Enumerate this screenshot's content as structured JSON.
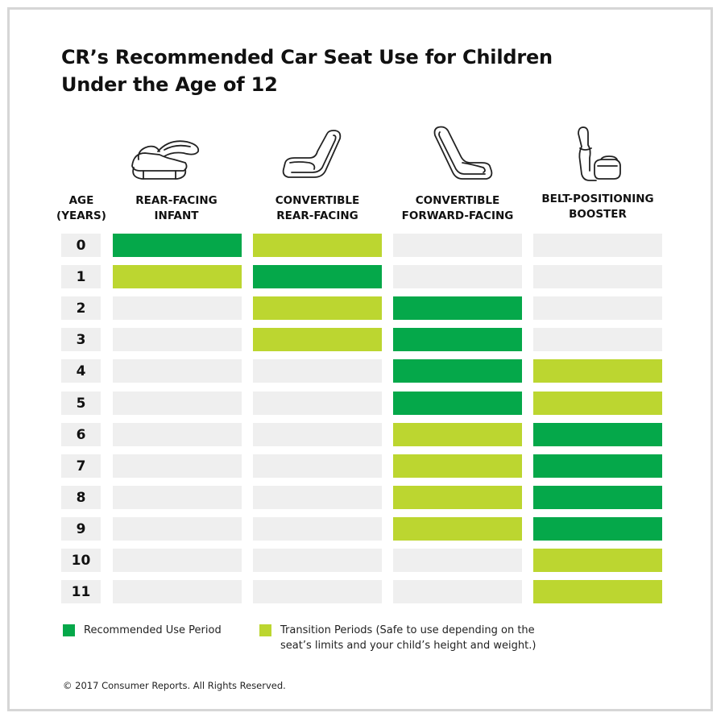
{
  "title_line1": "CR’s Recommended Car Seat Use for Children",
  "title_line2": "Under the Age of 12",
  "age_header_line1": "AGE",
  "age_header_line2": "(YEARS)",
  "columns": [
    {
      "line1": "REAR-FACING",
      "line2": "INFANT",
      "icon": "infant-carrier-icon"
    },
    {
      "line1": "CONVERTIBLE",
      "line2": "REAR-FACING",
      "icon": "convertible-rear-facing-seat-icon"
    },
    {
      "line1": "CONVERTIBLE",
      "line2": "FORWARD-FACING",
      "icon": "convertible-forward-facing-seat-icon"
    },
    {
      "line1": "BELT-POSITIONING",
      "line2": "BOOSTER",
      "icon": "booster-seat-icon"
    }
  ],
  "colors": {
    "recommended": "#05a84a",
    "transition": "#bcd630",
    "empty": "#efefef"
  },
  "chart_data": {
    "type": "heatmap",
    "title": "CR’s Recommended Car Seat Use for Children Under the Age of 12",
    "row_label": "AGE (YEARS)",
    "rows": [
      "0",
      "1",
      "2",
      "3",
      "4",
      "5",
      "6",
      "7",
      "8",
      "9",
      "10",
      "11"
    ],
    "columns": [
      "REAR-FACING INFANT",
      "CONVERTIBLE REAR-FACING",
      "CONVERTIBLE FORWARD-FACING",
      "BELT-POSITIONING BOOSTER"
    ],
    "values": [
      [
        "R",
        "T",
        "",
        ""
      ],
      [
        "T",
        "R",
        "",
        ""
      ],
      [
        "",
        "T",
        "R",
        ""
      ],
      [
        "",
        "T",
        "R",
        ""
      ],
      [
        "",
        "",
        "R",
        "T"
      ],
      [
        "",
        "",
        "R",
        "T"
      ],
      [
        "",
        "",
        "T",
        "R"
      ],
      [
        "",
        "",
        "T",
        "R"
      ],
      [
        "",
        "",
        "T",
        "R"
      ],
      [
        "",
        "",
        "T",
        "R"
      ],
      [
        "",
        "",
        "",
        "T"
      ],
      [
        "",
        "",
        "",
        "T"
      ]
    ],
    "legend": {
      "R": "Recommended Use Period",
      "T": "Transition Periods (Safe to use depending on the seat’s limits and your child’s height and weight.)"
    }
  },
  "legend": {
    "recommended_label": "Recommended Use Period",
    "transition_line1": "Transition Periods (Safe to use depending on the",
    "transition_line2": "seat’s limits and your child’s height and weight.)"
  },
  "footer": "© 2017 Consumer Reports. All Rights Reserved."
}
